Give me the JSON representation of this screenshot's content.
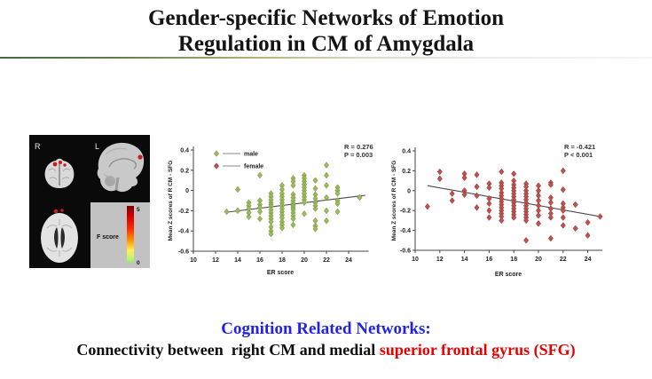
{
  "slide": {
    "title_line1": "Gender-specific Networks of Emotion",
    "title_line2": "Regulation in CM of Amygdala",
    "caption_heading": "Cognition Related Networks:",
    "caption_black": "Connectivity between  right CM and medial ",
    "caption_red": "superior frontal gyrus (SFG)"
  },
  "brain_panel": {
    "label_r": "R",
    "label_l": "L",
    "colorbar_label": "F score",
    "colorbar_max": "5",
    "colorbar_min": "0",
    "activation_color": "#c81e1e"
  },
  "chart_data": [
    {
      "type": "scatter",
      "name": "male",
      "xlabel": "ER score",
      "ylabel": "Mean Z scores of R CM - SFG",
      "xlim": [
        10,
        25.8
      ],
      "ylim": [
        -0.6,
        0.4
      ],
      "xticks": [
        10,
        12,
        14,
        16,
        18,
        20,
        22,
        24
      ],
      "yticks": [
        0.4,
        0.2,
        0,
        -0.2,
        -0.4,
        -0.6
      ],
      "annotation": [
        "R = 0.276",
        "P = 0.003"
      ],
      "legend": [
        {
          "label": "male",
          "color": "#9BBB59",
          "stroke": "#71893F"
        },
        {
          "label": "female",
          "color": "#C0504D",
          "stroke": "#8C3836"
        }
      ],
      "trend": {
        "from": [
          13,
          -0.215
        ],
        "to": [
          25.5,
          -0.048
        ],
        "color": "#4a4a4a"
      },
      "series": [
        {
          "name": "male",
          "color": "#9BBB59",
          "stroke": "#71893F",
          "points": [
            [
              13,
              -0.21
            ],
            [
              14,
              0.01
            ],
            [
              14,
              -0.2
            ],
            [
              15,
              -0.12
            ],
            [
              15,
              -0.15
            ],
            [
              15,
              -0.18
            ],
            [
              15,
              -0.22
            ],
            [
              15,
              -0.26
            ],
            [
              16,
              0.15
            ],
            [
              16,
              -0.1
            ],
            [
              16,
              -0.14
            ],
            [
              16,
              -0.17
            ],
            [
              16,
              -0.21
            ],
            [
              16,
              -0.28
            ],
            [
              17,
              -0.03
            ],
            [
              17,
              -0.06
            ],
            [
              17,
              -0.09
            ],
            [
              17,
              -0.12
            ],
            [
              17,
              -0.14
            ],
            [
              17,
              -0.16
            ],
            [
              17,
              -0.19
            ],
            [
              17,
              -0.22
            ],
            [
              17,
              -0.25
            ],
            [
              17,
              -0.28
            ],
            [
              17,
              -0.31
            ],
            [
              17,
              -0.36
            ],
            [
              17,
              -0.4
            ],
            [
              17,
              -0.43
            ],
            [
              18,
              0.05
            ],
            [
              18,
              0.01
            ],
            [
              18,
              -0.03
            ],
            [
              18,
              -0.06
            ],
            [
              18,
              -0.09
            ],
            [
              18,
              -0.12
            ],
            [
              18,
              -0.15
            ],
            [
              18,
              -0.18
            ],
            [
              18,
              -0.21
            ],
            [
              18,
              -0.24
            ],
            [
              18,
              -0.27
            ],
            [
              18,
              -0.31
            ],
            [
              18,
              -0.34
            ],
            [
              18,
              -0.37
            ],
            [
              19,
              0.12
            ],
            [
              19,
              0.09
            ],
            [
              19,
              0.05
            ],
            [
              19,
              -0.04
            ],
            [
              19,
              -0.07
            ],
            [
              19,
              -0.1
            ],
            [
              19,
              -0.13
            ],
            [
              19,
              -0.15
            ],
            [
              19,
              -0.17
            ],
            [
              19,
              -0.19
            ],
            [
              19,
              -0.22
            ],
            [
              19,
              -0.25
            ],
            [
              19,
              -0.28
            ],
            [
              19,
              -0.34
            ],
            [
              20,
              0.15
            ],
            [
              20,
              0.12
            ],
            [
              20,
              0.09
            ],
            [
              20,
              0.06
            ],
            [
              20,
              0.03
            ],
            [
              20,
              0.0
            ],
            [
              20,
              -0.03
            ],
            [
              20,
              -0.06
            ],
            [
              20,
              -0.09
            ],
            [
              20,
              -0.12
            ],
            [
              20,
              -0.23
            ],
            [
              21,
              0.1
            ],
            [
              21,
              0.02
            ],
            [
              21,
              -0.04
            ],
            [
              21,
              -0.08
            ],
            [
              21,
              -0.12
            ],
            [
              21,
              -0.15
            ],
            [
              21,
              -0.18
            ],
            [
              21,
              -0.3
            ],
            [
              21,
              -0.35
            ],
            [
              21,
              -0.38
            ],
            [
              22,
              0.25
            ],
            [
              22,
              0.15
            ],
            [
              22,
              0.05
            ],
            [
              22,
              -0.07
            ],
            [
              22,
              -0.2
            ],
            [
              22,
              -0.3
            ],
            [
              23,
              0.03
            ],
            [
              23,
              0.0
            ],
            [
              23,
              -0.03
            ],
            [
              23,
              -0.1
            ],
            [
              23,
              -0.13
            ],
            [
              23,
              -0.21
            ],
            [
              25,
              -0.07
            ]
          ]
        }
      ]
    },
    {
      "type": "scatter",
      "name": "female",
      "xlabel": "ER score",
      "ylabel": "Mean Z scores of R CM - SFG",
      "xlim": [
        10,
        25.2
      ],
      "ylim": [
        -0.6,
        0.4
      ],
      "xticks": [
        10,
        12,
        14,
        16,
        18,
        20,
        22,
        24
      ],
      "yticks": [
        0.4,
        0.2,
        0,
        -0.2,
        -0.4,
        -0.6
      ],
      "annotation": [
        "R = -0.421",
        "P < 0.001"
      ],
      "trend": {
        "from": [
          11,
          0.05
        ],
        "to": [
          25,
          -0.26
        ],
        "color": "#4a4a4a"
      },
      "series": [
        {
          "name": "female",
          "color": "#C0504D",
          "stroke": "#8C3836",
          "points": [
            [
              11,
              -0.16
            ],
            [
              12,
              0.19
            ],
            [
              12,
              0.12
            ],
            [
              13,
              -0.03
            ],
            [
              13,
              -0.1
            ],
            [
              14,
              0.17
            ],
            [
              14,
              0.13
            ],
            [
              14,
              0.0
            ],
            [
              14,
              -0.04
            ],
            [
              15,
              0.16
            ],
            [
              15,
              0.04
            ],
            [
              15,
              -0.05
            ],
            [
              15,
              -0.17
            ],
            [
              16,
              0.07
            ],
            [
              16,
              0.03
            ],
            [
              16,
              -0.08
            ],
            [
              16,
              -0.13
            ],
            [
              16,
              -0.2
            ],
            [
              16,
              -0.27
            ],
            [
              17,
              0.19
            ],
            [
              17,
              0.08
            ],
            [
              17,
              0.05
            ],
            [
              17,
              0.02
            ],
            [
              17,
              -0.02
            ],
            [
              17,
              -0.05
            ],
            [
              17,
              -0.08
            ],
            [
              17,
              -0.11
            ],
            [
              17,
              -0.14
            ],
            [
              17,
              -0.17
            ],
            [
              17,
              -0.2
            ],
            [
              17,
              -0.23
            ],
            [
              17,
              -0.26
            ],
            [
              17,
              -0.3
            ],
            [
              18,
              0.17
            ],
            [
              18,
              0.1
            ],
            [
              18,
              0.06
            ],
            [
              18,
              0.03
            ],
            [
              18,
              0.0
            ],
            [
              18,
              -0.03
            ],
            [
              18,
              -0.06
            ],
            [
              18,
              -0.09
            ],
            [
              18,
              -0.12
            ],
            [
              18,
              -0.15
            ],
            [
              18,
              -0.18
            ],
            [
              18,
              -0.21
            ],
            [
              18,
              -0.24
            ],
            [
              18,
              -0.27
            ],
            [
              19,
              0.07
            ],
            [
              19,
              0.04
            ],
            [
              19,
              0.0
            ],
            [
              19,
              -0.03
            ],
            [
              19,
              -0.06
            ],
            [
              19,
              -0.09
            ],
            [
              19,
              -0.12
            ],
            [
              19,
              -0.15
            ],
            [
              19,
              -0.18
            ],
            [
              19,
              -0.21
            ],
            [
              19,
              -0.24
            ],
            [
              19,
              -0.27
            ],
            [
              19,
              -0.3
            ],
            [
              19,
              -0.5
            ],
            [
              20,
              0.05
            ],
            [
              20,
              0.0
            ],
            [
              20,
              -0.05
            ],
            [
              20,
              -0.1
            ],
            [
              20,
              -0.15
            ],
            [
              20,
              -0.2
            ],
            [
              20,
              -0.25
            ],
            [
              20,
              -0.33
            ],
            [
              21,
              0.08
            ],
            [
              21,
              0.06
            ],
            [
              21,
              -0.07
            ],
            [
              21,
              -0.12
            ],
            [
              21,
              -0.18
            ],
            [
              21,
              -0.23
            ],
            [
              21,
              -0.27
            ],
            [
              21,
              -0.48
            ],
            [
              22,
              0.2
            ],
            [
              22,
              0.01
            ],
            [
              22,
              -0.13
            ],
            [
              22,
              -0.17
            ],
            [
              22,
              -0.2
            ],
            [
              22,
              -0.27
            ],
            [
              22,
              -0.35
            ],
            [
              23,
              -0.14
            ],
            [
              23,
              -0.38
            ],
            [
              24,
              -0.32
            ],
            [
              24,
              -0.45
            ],
            [
              25,
              -0.26
            ]
          ]
        }
      ]
    }
  ]
}
